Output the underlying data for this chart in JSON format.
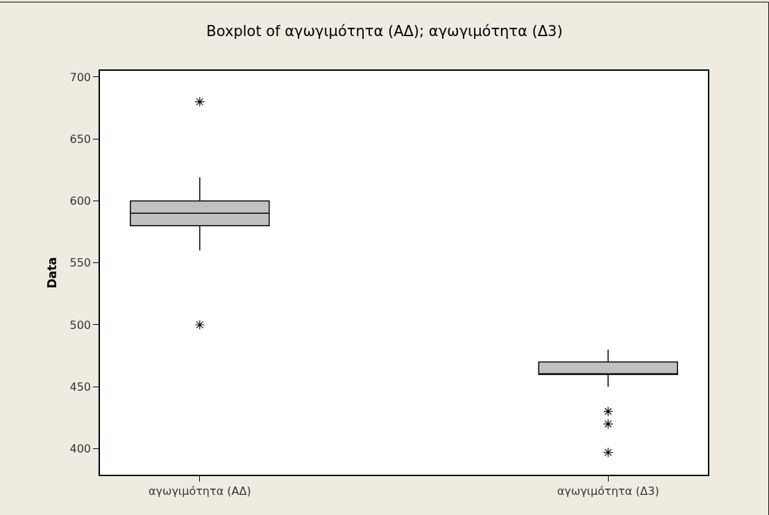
{
  "chart_data": {
    "type": "box",
    "title": "Boxplot of αγωγιμότητα (ΑΔ); αγωγιμότητα (Δ3)",
    "ylabel": "Data",
    "categories": [
      "αγωγιμότητα (ΑΔ)",
      "αγωγιμότητα (Δ3)"
    ],
    "boxes": [
      {
        "low": 560,
        "q1": 580,
        "median": 590,
        "q3": 600,
        "high": 619,
        "outliers": [
          680,
          500
        ]
      },
      {
        "low": 450,
        "q1": 460,
        "median": 460,
        "q3": 470,
        "high": 480,
        "outliers": [
          430,
          420,
          397
        ]
      }
    ],
    "color": "#c0c0c0",
    "ylim": [
      379,
      705
    ],
    "yticks": [
      400,
      450,
      500,
      550,
      600,
      650,
      700
    ],
    "marker": "star",
    "legend": false
  }
}
